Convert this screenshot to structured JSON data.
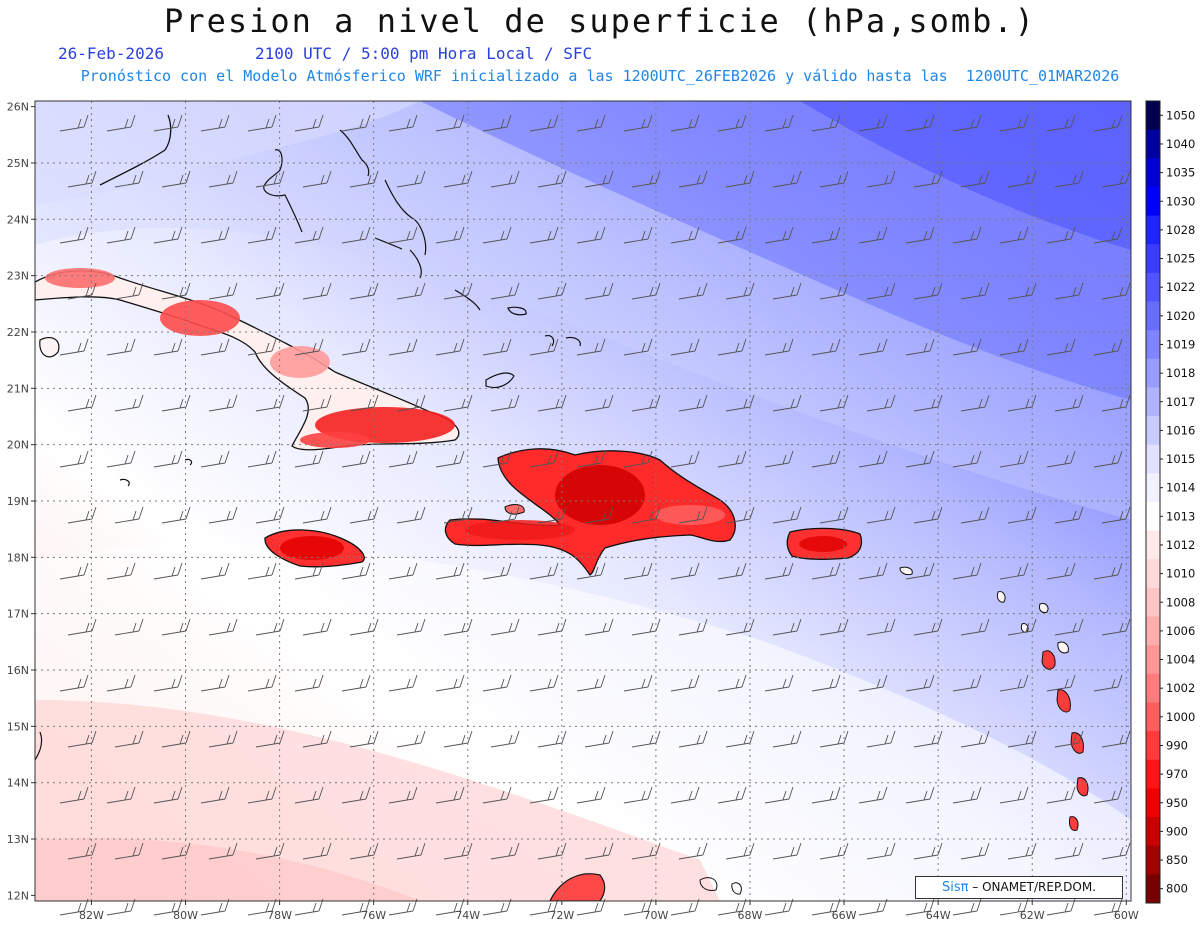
{
  "header": {
    "title": "Presion a nivel de superficie (hPa,somb.)",
    "date": "26-Feb-2026",
    "time_label": "2100 UTC / 5:00 pm Hora Local / SFC",
    "model_note": "Pronóstico con el Modelo Atmósferico WRF inicializado a las 1200UTC_26FEB2026 y válido hasta las  1200UTC_01MAR2026"
  },
  "map": {
    "lon_range": [
      -83.2,
      -59.9
    ],
    "lat_range": [
      11.9,
      26.1
    ],
    "lat_ticks": [
      "26N",
      "25N",
      "24N",
      "23N",
      "22N",
      "21N",
      "20N",
      "19N",
      "18N",
      "17N",
      "16N",
      "15N",
      "14N",
      "13N",
      "12N"
    ],
    "lon_ticks": [
      "82W",
      "80W",
      "78W",
      "76W",
      "74W",
      "72W",
      "70W",
      "68W",
      "66W",
      "64W",
      "62W",
      "60W"
    ],
    "gridlines": true
  },
  "colorbar": {
    "labels": [
      "1050",
      "1040",
      "1035",
      "1030",
      "1028",
      "1025",
      "1022",
      "1020",
      "1019",
      "1018",
      "1017",
      "1016",
      "1015",
      "1014",
      "1013",
      "1012",
      "1010",
      "1008",
      "1006",
      "1004",
      "1002",
      "1000",
      "990",
      "970",
      "950",
      "900",
      "850",
      "800"
    ],
    "colors": [
      "#03004f",
      "#0000a0",
      "#0000d4",
      "#0000ff",
      "#1f25ff",
      "#3a3cff",
      "#5055ff",
      "#676dff",
      "#7f85ff",
      "#989dff",
      "#b0b4ff",
      "#c7cbff",
      "#dfe1ff",
      "#f1f2ff",
      "#ffffff",
      "#ffe9e9",
      "#ffd8d8",
      "#ffc4c4",
      "#ffaeae",
      "#ff9696",
      "#ff7c7c",
      "#ff5e5e",
      "#ff3b3b",
      "#ff1515",
      "#ef0000",
      "#c80000",
      "#a00000",
      "#780000"
    ]
  },
  "credit": {
    "sis": "Sisπ",
    "org": "– ONAMET/REP.DOM."
  }
}
